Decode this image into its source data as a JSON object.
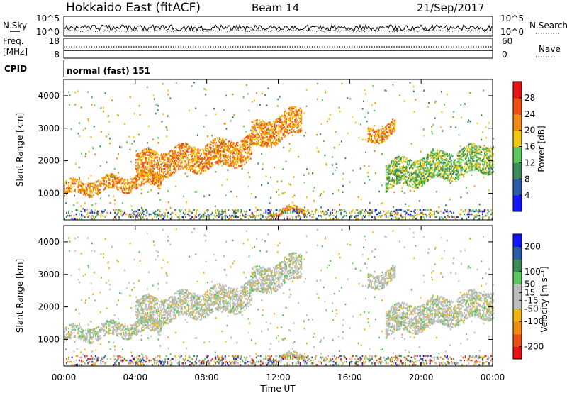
{
  "header": {
    "station": "Hokkaido East (fitACF)",
    "beam": "Beam 14",
    "date": "21/Sep/2017"
  },
  "side_labels": {
    "nsky": "N.Sky",
    "freq_line1": "Freq.",
    "freq_line2": "[MHz]",
    "cpid": "CPID",
    "nsearch": "N.Search",
    "nave": "Nave"
  },
  "noise_panel": {
    "left_ticks": [
      "10^5",
      "10^0"
    ],
    "right_ticks": [
      "10^5",
      "10^0"
    ]
  },
  "freq_panel": {
    "left_ticks": [
      "18",
      "8"
    ],
    "right_ticks": [
      "60",
      "0"
    ]
  },
  "cpid_panel": {
    "text": "normal (fast) 151"
  },
  "colors": {
    "power": [
      "#1414ff",
      "#2a5aa8",
      "#3c8c5a",
      "#5ac85a",
      "#f0c814",
      "#f08c14",
      "#f05014",
      "#e81414"
    ],
    "velocity": [
      "#e81414",
      "#f05014",
      "#f08c14",
      "#f0b414",
      "#bdbdbd",
      "#bdbdbd",
      "#5ac85a",
      "#3c8c5a",
      "#2a5aa8",
      "#1414ff"
    ]
  },
  "chart_data": [
    {
      "type": "heatmap",
      "title": "Power",
      "ylabel": "Slant Range [km]",
      "xlabel": "",
      "x_ticks": [
        "00:00",
        "04:00",
        "08:00",
        "12:00",
        "16:00",
        "20:00",
        "00:00"
      ],
      "y_ticks": [
        1000,
        2000,
        3000,
        4000
      ],
      "xlim_hours": [
        0,
        24
      ],
      "ylim_km": [
        180,
        4500
      ],
      "colorbar": {
        "label": "Power [dB]",
        "ticks": [
          4,
          8,
          12,
          16,
          20,
          24,
          28
        ],
        "range": [
          0,
          32
        ]
      },
      "echo_bands": [
        {
          "hours": [
            0,
            5.5
          ],
          "range_km": [
            900,
            1700
          ],
          "intensity": "high"
        },
        {
          "hours": [
            4,
            10.5
          ],
          "range_km": [
            1400,
            2800
          ],
          "intensity": "high"
        },
        {
          "hours": [
            10.5,
            13.3
          ],
          "range_km": [
            2300,
            3700
          ],
          "intensity": "high"
        },
        {
          "hours": [
            11.5,
            13.5
          ],
          "range_km": [
            300,
            550
          ],
          "intensity": "high"
        },
        {
          "hours": [
            17,
            18.5
          ],
          "range_km": [
            2500,
            3300
          ],
          "intensity": "high"
        },
        {
          "hours": [
            18,
            24
          ],
          "range_km": [
            1100,
            2600
          ],
          "intensity": "medium"
        }
      ]
    },
    {
      "type": "heatmap",
      "title": "Velocity",
      "ylabel": "Slant Range [km]",
      "xlabel": "Time UT",
      "x_ticks": [
        "00:00",
        "04:00",
        "08:00",
        "12:00",
        "16:00",
        "20:00",
        "00:00"
      ],
      "y_ticks": [
        1000,
        2000,
        3000,
        4000
      ],
      "xlim_hours": [
        0,
        24
      ],
      "ylim_km": [
        180,
        4500
      ],
      "colorbar": {
        "label": "Velocity [m s⁻¹]",
        "ticks": [
          -200,
          -100,
          -50,
          -15,
          15,
          50,
          100,
          200
        ],
        "range": [
          -250,
          250
        ]
      }
    }
  ]
}
